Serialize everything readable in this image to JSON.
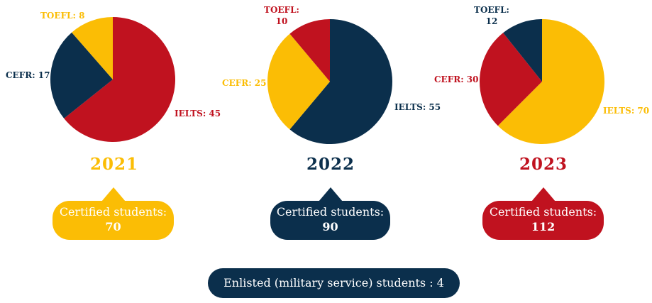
{
  "colors": {
    "navy": "#0b2f4c",
    "gold": "#fbbd05",
    "red": "#c0121f"
  },
  "chart_data": [
    {
      "type": "pie",
      "title": "2021",
      "title_color": "#fbbd05",
      "slices": [
        {
          "label": "IELTS",
          "value": 45,
          "color": "#c0121f"
        },
        {
          "label": "CEFR",
          "value": 17,
          "color": "#0b2f4c"
        },
        {
          "label": "TOEFL",
          "value": 8,
          "color": "#fbbd05"
        }
      ],
      "callout": {
        "label": "Certified students:",
        "total": "70",
        "color": "#fbbd05"
      }
    },
    {
      "type": "pie",
      "title": "2022",
      "title_color": "#0b2f4c",
      "slices": [
        {
          "label": "IELTS",
          "value": 55,
          "color": "#0b2f4c"
        },
        {
          "label": "CEFR",
          "value": 25,
          "color": "#fbbd05"
        },
        {
          "label": "TOEFL",
          "value": 10,
          "color": "#c0121f"
        }
      ],
      "callout": {
        "label": "Certified students:",
        "total": "90",
        "color": "#0b2f4c"
      }
    },
    {
      "type": "pie",
      "title": "2023",
      "title_color": "#c0121f",
      "slices": [
        {
          "label": "IELTS",
          "value": 70,
          "color": "#fbbd05"
        },
        {
          "label": "CEFR",
          "value": 30,
          "color": "#c0121f"
        },
        {
          "label": "TOEFL",
          "value": 12,
          "color": "#0b2f4c"
        }
      ],
      "callout": {
        "label": "Certified students:",
        "total": "112",
        "color": "#c0121f"
      }
    }
  ],
  "footer": {
    "text": "Enlisted (military service) students : 4"
  }
}
